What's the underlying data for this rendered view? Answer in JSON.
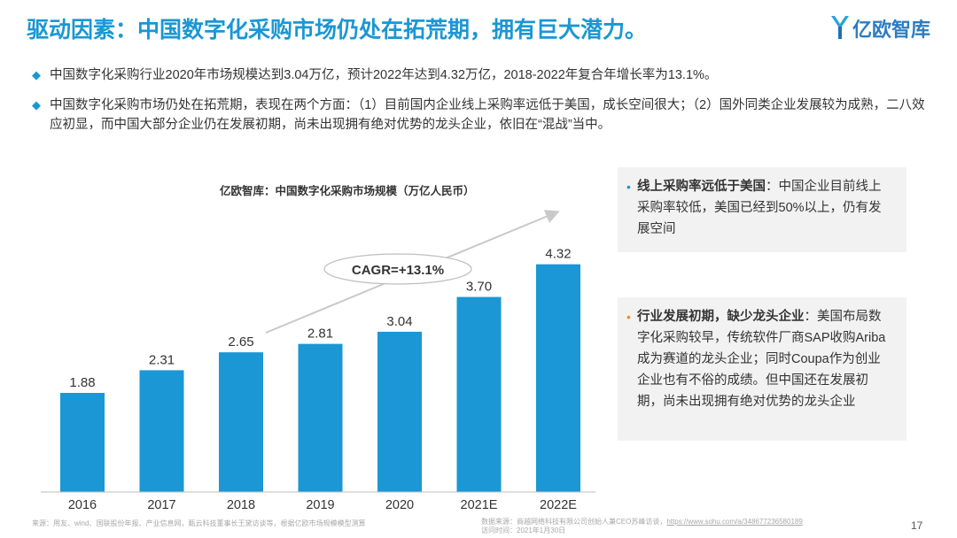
{
  "header": {
    "title": "驱动因素：中国数字化采购市场仍处在拓荒期，拥有巨大潜力。",
    "logo_text": "亿欧智库"
  },
  "bullets": [
    "中国数字化采购行业2020年市场规模达到3.04万亿，预计2022年达到4.32万亿，2018-2022年复合年增长率为13.1%。",
    "中国数字化采购市场仍处在拓荒期，表现在两个方面：（1）目前国内企业线上采购率远低于美国，成长空间很大；（2）国外同类企业发展较为成熟，二八效应初显，而中国大部分企业仍在发展初期，尚未出现拥有绝对优势的龙头企业，依旧在“混战”当中。"
  ],
  "colors": {
    "accent": "#1a97d4",
    "bar": "#1a97d4",
    "orange": "#f08a24"
  },
  "chart_data": {
    "type": "bar",
    "title": "亿欧智库：中国数字化采购市场规模（万亿人民币）",
    "categories": [
      "2016",
      "2017",
      "2018",
      "2019",
      "2020",
      "2021E",
      "2022E"
    ],
    "values": [
      1.88,
      2.31,
      2.65,
      2.81,
      3.04,
      3.7,
      4.32
    ],
    "value_labels": [
      "1.88",
      "2.31",
      "2.65",
      "2.81",
      "3.04",
      "3.70",
      "4.32"
    ],
    "ylim": [
      0,
      4.6
    ],
    "annotation": "CAGR=+13.1%",
    "grid": false,
    "legend": "none"
  },
  "side_boxes": [
    {
      "bold": "线上采购率远低于美国",
      "text": "：中国企业目前线上采购率较低，美国已经到50%以上，仍有发展空间"
    },
    {
      "bold": "行业发展初期，缺少龙头企业",
      "text": "：美国布局数字化采购较早，传统软件厂商SAP收购Ariba成为赛道的龙头企业；同时Coupa作为创业企业也有不俗的成绩。但中国还在发展初期，尚未出现拥有绝对优势的龙头企业"
    }
  ],
  "footer": {
    "source": "来源：用友、wind、国联股份年报、产业信息网，甄云科技董事长王黛访谈等，根据亿欧市场规模模型测算",
    "data_source": "数据来源：商越网络科技有限公司创始人兼CEO苏峰访谈，",
    "data_link": "https://www.sohu.com/a/348677236580189",
    "access_time": "访问时间：2021年1月30日",
    "page_number": "17"
  }
}
